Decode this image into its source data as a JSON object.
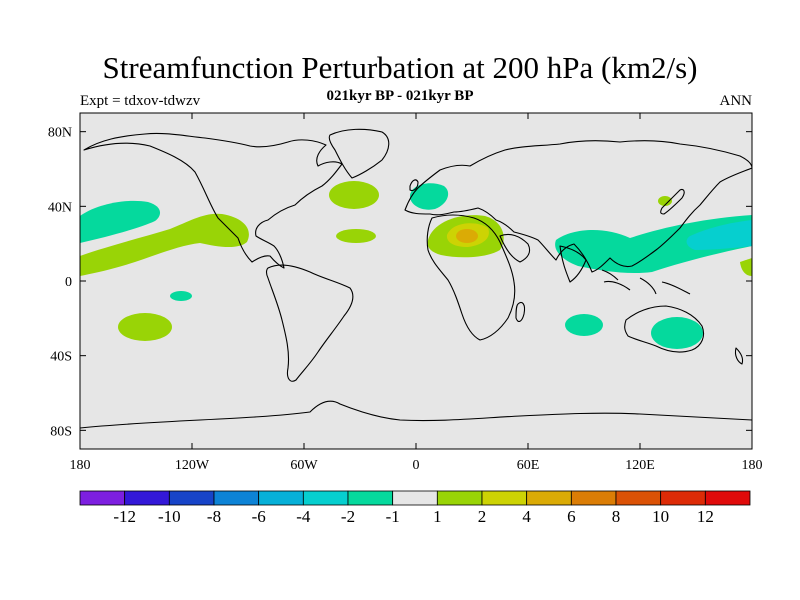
{
  "header": {
    "title": "Streamfunction Perturbation at 200 hPa (km2/s)",
    "left_label": "Expt = tdxov-tdwzv",
    "center_label": "021kyr BP - 021kyr BP",
    "right_label": "ANN"
  },
  "colors": {
    "land_background": "#e6e6e6",
    "coastline": "#000000"
  },
  "chart_data": {
    "type": "heatmap",
    "projection": "cylindrical-equidistant",
    "xlim": [
      -180,
      180
    ],
    "ylim": [
      -90,
      90
    ],
    "x_ticks": [
      {
        "value": -180,
        "label": "180"
      },
      {
        "value": -120,
        "label": "120W"
      },
      {
        "value": -60,
        "label": "60W"
      },
      {
        "value": 0,
        "label": "0"
      },
      {
        "value": 60,
        "label": "60E"
      },
      {
        "value": 120,
        "label": "120E"
      },
      {
        "value": 180,
        "label": "180"
      }
    ],
    "y_ticks": [
      {
        "value": 80,
        "label": "80N"
      },
      {
        "value": 40,
        "label": "40N"
      },
      {
        "value": 0,
        "label": "0"
      },
      {
        "value": -40,
        "label": "40S"
      },
      {
        "value": -80,
        "label": "80S"
      }
    ],
    "colorbar": {
      "labels": [
        "-12",
        "-10",
        "-8",
        "-6",
        "-4",
        "-2",
        "-1",
        "1",
        "2",
        "4",
        "6",
        "8",
        "10",
        "12"
      ],
      "colors": [
        "#7d1fe0",
        "#3318d8",
        "#1744c8",
        "#0d83d6",
        "#07b0d8",
        "#06cfcf",
        "#05d99d",
        "#e6e6e6",
        "#99d406",
        "#cdd304",
        "#dbab05",
        "#db7d05",
        "#db5205",
        "#dd2b07",
        "#e00a0a"
      ]
    },
    "anomaly_regions": [
      {
        "name": "N Pacific subtropics",
        "center": [
          -160,
          34
        ],
        "level": "-2 to -1"
      },
      {
        "name": "Tropical E Pacific",
        "center": [
          -140,
          14
        ],
        "level": "1 to 2"
      },
      {
        "name": "Gulf of Mexico",
        "center": [
          -103,
          27
        ],
        "level": "1 to 2"
      },
      {
        "name": "N Atlantic",
        "center": [
          -28,
          46
        ],
        "level": "1 to 2"
      },
      {
        "name": "Subtropical Atlantic",
        "center": [
          -32,
          24
        ],
        "level": "1 to 2"
      },
      {
        "name": "Europe",
        "center": [
          8,
          48
        ],
        "level": "-2 to -1"
      },
      {
        "name": "N Africa / Middle East",
        "center": [
          28,
          26
        ],
        "level": "2 to 6"
      },
      {
        "name": "Indo-Pacific",
        "center": [
          125,
          24
        ],
        "level": "-6 to -1"
      },
      {
        "name": "Japan",
        "center": [
          135,
          42
        ],
        "level": "1 to 2"
      },
      {
        "name": "S Pacific",
        "center": [
          -155,
          -25
        ],
        "level": "1 to 2"
      },
      {
        "name": "SE Pacific",
        "center": [
          -130,
          -8
        ],
        "level": "-2 to -1"
      },
      {
        "name": "S Indian Ocean",
        "center": [
          90,
          -23
        ],
        "level": "-2 to -1"
      },
      {
        "name": "E Australia / Tasman",
        "center": [
          145,
          -28
        ],
        "level": "-2 to -1"
      }
    ]
  }
}
